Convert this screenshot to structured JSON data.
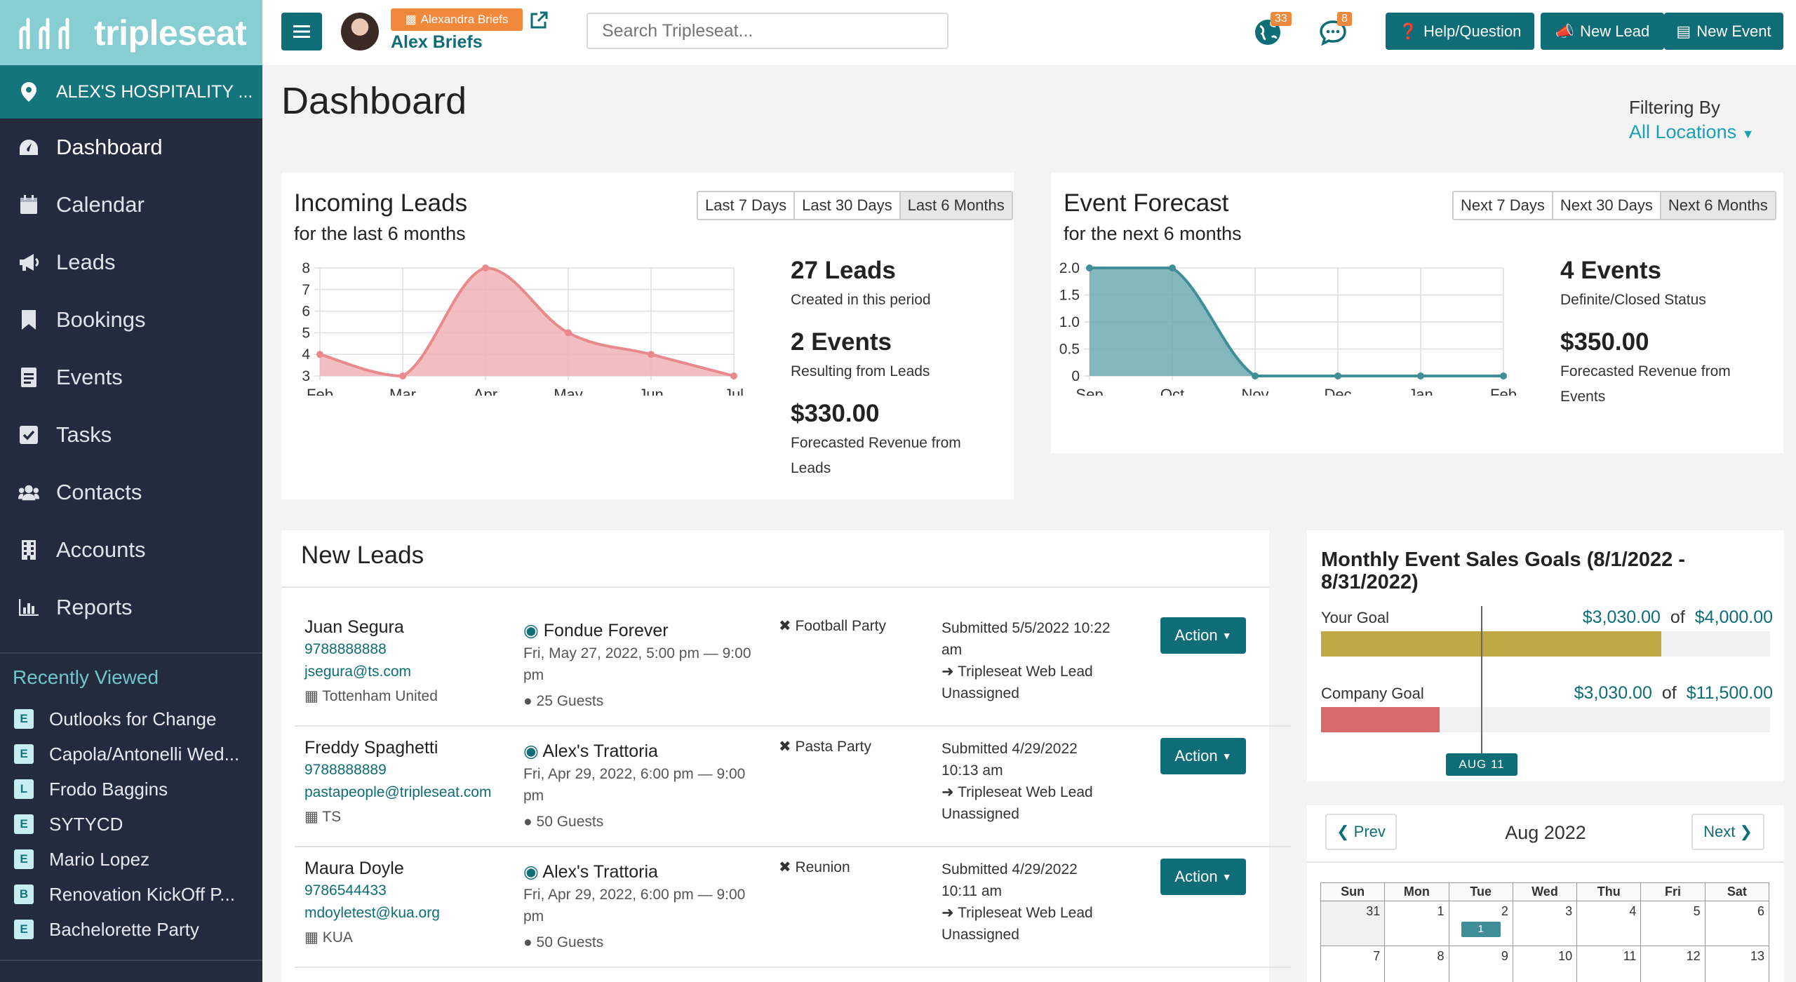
{
  "app": {
    "logo": "tripleseat",
    "location": "ALEX'S HOSPITALITY ..."
  },
  "nav": [
    {
      "label": "Dashboard",
      "icon": "dashboard-icon"
    },
    {
      "label": "Calendar",
      "icon": "calendar-icon"
    },
    {
      "label": "Leads",
      "icon": "megaphone-icon"
    },
    {
      "label": "Bookings",
      "icon": "bookmark-icon"
    },
    {
      "label": "Events",
      "icon": "event-doc-icon"
    },
    {
      "label": "Tasks",
      "icon": "checkbox-icon"
    },
    {
      "label": "Contacts",
      "icon": "people-icon"
    },
    {
      "label": "Accounts",
      "icon": "building-icon"
    },
    {
      "label": "Reports",
      "icon": "bar-chart-icon"
    }
  ],
  "recent": {
    "title": "Recently Viewed",
    "items": [
      {
        "badge": "E",
        "label": "Outlooks for Change"
      },
      {
        "badge": "E",
        "label": "Capola/Antonelli Wed..."
      },
      {
        "badge": "L",
        "label": "Frodo Baggins"
      },
      {
        "badge": "E",
        "label": "SYTYCD"
      },
      {
        "badge": "E",
        "label": "Mario Lopez"
      },
      {
        "badge": "B",
        "label": "Renovation KickOff P..."
      },
      {
        "badge": "E",
        "label": "Bachelorette Party"
      }
    ]
  },
  "topbar": {
    "user_badge": "Alexandra Briefs",
    "user_name": "Alex Briefs",
    "search_placeholder": "Search Tripleseat...",
    "globe_count": "33",
    "chat_count": "8",
    "help_label": "Help/Question",
    "new_lead_label": "New Lead",
    "new_event_label": "New Event"
  },
  "page": {
    "title": "Dashboard",
    "filter_label": "Filtering By",
    "filter_value": "All Locations"
  },
  "incoming": {
    "title": "Incoming Leads",
    "subtitle": "for the last 6 months",
    "ranges": [
      "Last 7 Days",
      "Last 30 Days",
      "Last 6 Months"
    ],
    "active_range": 2,
    "stats": [
      {
        "big": "27 Leads",
        "small": "Created in this period"
      },
      {
        "big": "2 Events",
        "small": "Resulting from Leads"
      },
      {
        "big": "$330.00",
        "small": "Forecasted Revenue from Leads"
      }
    ]
  },
  "forecast": {
    "title": "Event Forecast",
    "subtitle": "for the next 6 months",
    "ranges": [
      "Next 7 Days",
      "Next 30 Days",
      "Next 6 Months"
    ],
    "active_range": 2,
    "stats": [
      {
        "big": "4 Events",
        "small": "Definite/Closed Status"
      },
      {
        "big": "$350.00",
        "small": "Forecasted Revenue from Events"
      }
    ]
  },
  "chart_data": [
    {
      "type": "area",
      "categories": [
        "Feb",
        "Mar",
        "Apr",
        "May",
        "Jun",
        "Jul"
      ],
      "values": [
        4,
        3,
        8,
        5,
        4,
        3
      ],
      "yticks": [
        "3",
        "4",
        "5",
        "6",
        "7",
        "8"
      ],
      "ylim": [
        3,
        8
      ],
      "color": "#e8898e",
      "fill": "#f1b3b6",
      "grid": true
    },
    {
      "type": "area",
      "categories": [
        "Sep",
        "Oct",
        "Nov",
        "Dec",
        "Jan",
        "Feb"
      ],
      "values": [
        2,
        2,
        0,
        0,
        0,
        0
      ],
      "yticks": [
        "0",
        "0.5",
        "1.0",
        "1.5",
        "2.0"
      ],
      "ylim": [
        0,
        2
      ],
      "color": "#3f8e98",
      "fill": "#6eaab2",
      "grid": true
    }
  ],
  "new_leads": {
    "title": "New Leads",
    "action_label": "Action",
    "rows": [
      {
        "name": "Juan Segura",
        "phone": "9788888888",
        "email": "jsegura@ts.com",
        "company": "Tottenham United",
        "venue": "Fondue Forever",
        "time": "Fri, May 27, 2022, 5:00 pm — 9:00 pm",
        "guests": "25 Guests",
        "type": "Football Party",
        "submitted": "Submitted 5/5/2022 10:22 am",
        "source": "Tripleseat Web Lead",
        "owner": "Unassigned"
      },
      {
        "name": "Freddy Spaghetti",
        "phone": "9788888889",
        "email": "pastapeople@tripleseat.com",
        "company": "TS",
        "venue": "Alex's Trattoria",
        "time": "Fri, Apr 29, 2022, 6:00 pm — 9:00 pm",
        "guests": "50 Guests",
        "type": "Pasta Party",
        "submitted": "Submitted 4/29/2022 10:13 am",
        "source": "Tripleseat Web Lead",
        "owner": "Unassigned"
      },
      {
        "name": "Maura Doyle",
        "phone": "9786544433",
        "email": "mdoyletest@kua.org",
        "company": "KUA",
        "venue": "Alex's Trattoria",
        "time": "Fri, Apr 29, 2022, 6:00 pm — 9:00 pm",
        "guests": "50 Guests",
        "type": "Reunion",
        "submitted": "Submitted 4/29/2022 10:11 am",
        "source": "Tripleseat Web Lead",
        "owner": "Unassigned"
      }
    ]
  },
  "goals": {
    "title": "Monthly Event Sales Goals (8/1/2022 - 8/31/2022)",
    "your_label": "Your Goal",
    "your_current": "$3,030.00",
    "your_target": "$4,000.00",
    "your_fraction": 0.7575,
    "company_label": "Company Goal",
    "company_current": "$3,030.00",
    "company_target": "$11,500.00",
    "company_fraction": 0.2635,
    "of": "of",
    "today_marker": "AUG 11",
    "your_color": "#bfa944",
    "company_color": "#d9686a"
  },
  "calendar": {
    "prev": "Prev",
    "next": "Next",
    "month": "Aug 2022",
    "days": [
      "Sun",
      "Mon",
      "Tue",
      "Wed",
      "Thu",
      "Fri",
      "Sat"
    ],
    "week1": [
      "31",
      "1",
      "2",
      "3",
      "4",
      "5",
      "6"
    ],
    "week2": [
      "7",
      "8",
      "9",
      "10",
      "11",
      "12",
      "13"
    ],
    "event_badge": "1"
  }
}
